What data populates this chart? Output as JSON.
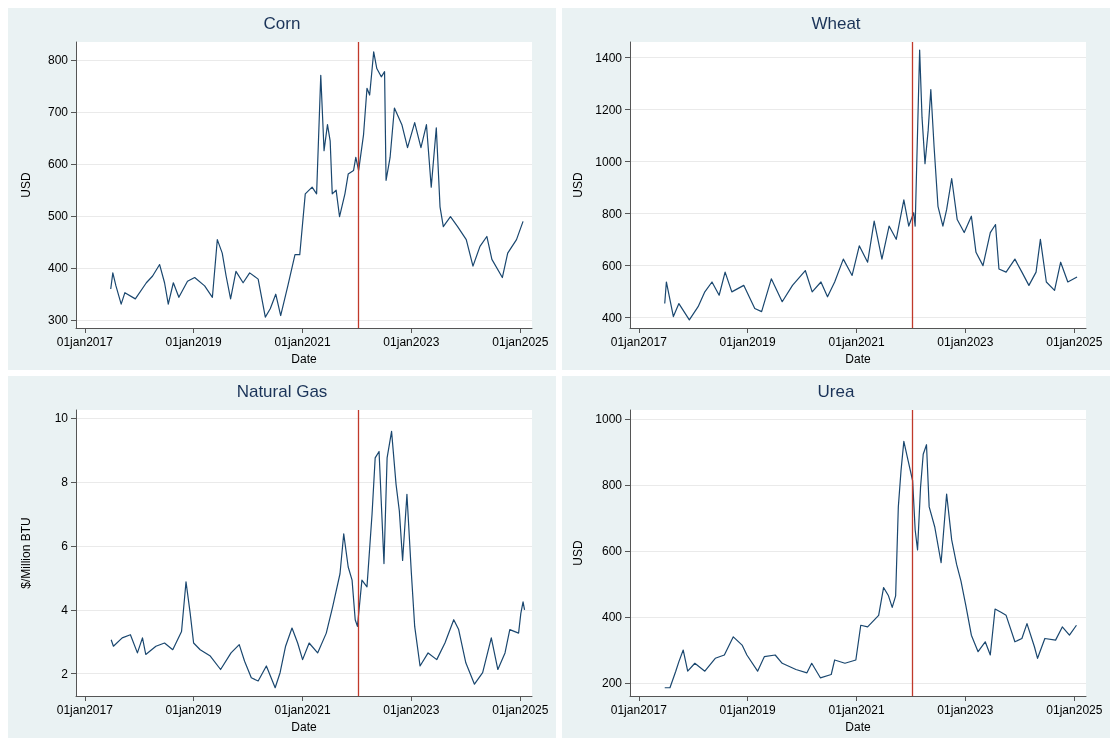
{
  "chart_data": [
    {
      "type": "line",
      "title": "Corn",
      "xlabel": "Date",
      "ylabel": "USD",
      "grid": "y",
      "x": [
        "2017-06-24",
        "2017-07-08",
        "2017-07-29",
        "2017-09-02",
        "2017-09-27",
        "2017-12-06",
        "2018-02-18",
        "2018-04-01",
        "2018-05-18",
        "2018-06-20",
        "2018-07-15",
        "2018-08-18",
        "2018-09-24",
        "2018-11-21",
        "2019-01-08",
        "2019-03-16",
        "2019-05-07",
        "2019-06-09",
        "2019-07-12",
        "2019-08-07",
        "2019-09-06",
        "2019-10-12",
        "2019-11-29",
        "2020-01-12",
        "2020-03-09",
        "2020-04-26",
        "2020-05-29",
        "2020-07-05",
        "2020-08-07",
        "2020-09-24",
        "2020-11-11",
        "2020-12-13",
        "2021-01-19",
        "2021-03-06",
        "2021-04-05",
        "2021-05-03",
        "2021-05-25",
        "2021-06-17",
        "2021-07-05",
        "2021-07-19",
        "2021-08-14",
        "2021-09-06",
        "2021-10-12",
        "2021-11-03",
        "2021-12-09",
        "2021-12-24",
        "2022-01-12",
        "2022-02-14",
        "2022-03-09",
        "2022-03-27",
        "2022-04-23",
        "2022-05-14",
        "2022-06-13",
        "2022-07-05",
        "2022-07-15",
        "2022-08-11",
        "2022-09-09",
        "2022-10-29",
        "2022-12-06",
        "2023-01-23",
        "2023-03-06",
        "2023-04-12",
        "2023-05-14",
        "2023-06-17",
        "2023-07-12",
        "2023-08-03",
        "2023-09-20",
        "2023-11-07",
        "2024-01-04",
        "2024-02-18",
        "2024-04-05",
        "2024-05-21",
        "2024-06-24",
        "2024-09-02",
        "2024-10-08",
        "2024-12-06",
        "2025-01-19"
      ],
      "series": [
        {
          "color": "#1a476f",
          "values": [
            360,
            391,
            366,
            331,
            353,
            341,
            372,
            385,
            407,
            372,
            331,
            372,
            344,
            375,
            382,
            366,
            344,
            455,
            429,
            385,
            341,
            394,
            372,
            391,
            379,
            306,
            322,
            350,
            309,
            366,
            426,
            426,
            543,
            556,
            543,
            771,
            626,
            676,
            645,
            543,
            550,
            499,
            543,
            581,
            588,
            613,
            588,
            657,
            746,
            733,
            816,
            784,
            768,
            778,
            569,
            613,
            708,
            676,
            632,
            680,
            632,
            676,
            556,
            670,
            518,
            480,
            499,
            480,
            455,
            404,
            442,
            461,
            417,
            382,
            429,
            455,
            490
          ]
        }
      ],
      "xlim": [
        "2016-11-03",
        "2025-03-20"
      ],
      "xticks": [
        {
          "value": "2017-01-01",
          "label": "01jan2017"
        },
        {
          "value": "2019-01-01",
          "label": "01jan2019"
        },
        {
          "value": "2021-01-01",
          "label": "01jan2021"
        },
        {
          "value": "2023-01-01",
          "label": "01jan2023"
        },
        {
          "value": "2025-01-01",
          "label": "01jan2025"
        }
      ],
      "ylim": [
        285,
        835
      ],
      "yticks": [
        300,
        400,
        500,
        600,
        700,
        800
      ],
      "ref_lines": [
        {
          "axis": "x",
          "value": "2022-01-08",
          "color": "#c0392b"
        }
      ]
    },
    {
      "type": "line",
      "title": "Wheat",
      "xlabel": "Date",
      "ylabel": "USD",
      "grid": "y",
      "x": [
        "2017-06-24",
        "2017-07-05",
        "2017-08-21",
        "2017-09-27",
        "2017-12-06",
        "2018-02-03",
        "2018-03-20",
        "2018-05-07",
        "2018-06-24",
        "2018-08-03",
        "2018-09-17",
        "2018-12-06",
        "2019-02-18",
        "2019-04-05",
        "2019-06-09",
        "2019-08-21",
        "2019-10-29",
        "2020-01-23",
        "2020-03-09",
        "2020-05-07",
        "2020-06-20",
        "2020-08-07",
        "2020-10-04",
        "2020-12-02",
        "2021-01-19",
        "2021-03-16",
        "2021-04-29",
        "2021-06-20",
        "2021-08-07",
        "2021-09-24",
        "2021-11-14",
        "2021-12-17",
        "2022-01-19",
        "2022-01-29",
        "2022-02-28",
        "2022-03-16",
        "2022-04-05",
        "2022-04-26",
        "2022-05-14",
        "2022-06-05",
        "2022-07-01",
        "2022-08-03",
        "2022-08-28",
        "2022-10-01",
        "2022-11-07",
        "2022-12-24",
        "2023-02-10",
        "2023-03-13",
        "2023-04-29",
        "2023-06-17",
        "2023-07-22",
        "2023-08-14",
        "2023-10-01",
        "2023-11-29",
        "2024-01-15",
        "2024-03-02",
        "2024-04-19",
        "2024-05-18",
        "2024-06-27",
        "2024-08-21",
        "2024-10-01",
        "2024-11-18",
        "2025-01-19"
      ],
      "series": [
        {
          "color": "#1a476f",
          "values": [
            454,
            537,
            404,
            454,
            391,
            442,
            499,
            537,
            486,
            575,
            499,
            524,
            435,
            423,
            549,
            461,
            524,
            581,
            499,
            537,
            480,
            537,
            625,
            562,
            676,
            613,
            771,
            625,
            752,
            701,
            853,
            752,
            803,
            752,
            1429,
            1170,
            992,
            1119,
            1277,
            1056,
            828,
            752,
            815,
            935,
            777,
            727,
            790,
            651,
            600,
            727,
            758,
            587,
            575,
            625,
            575,
            524,
            575,
            701,
            537,
            505,
            613,
            537,
            556
          ]
        }
      ],
      "xlim": [
        "2016-11-03",
        "2025-03-20"
      ],
      "xticks": [
        {
          "value": "2017-01-01",
          "label": "01jan2017"
        },
        {
          "value": "2019-01-01",
          "label": "01jan2019"
        },
        {
          "value": "2021-01-01",
          "label": "01jan2021"
        },
        {
          "value": "2023-01-01",
          "label": "01jan2023"
        },
        {
          "value": "2025-01-01",
          "label": "01jan2025"
        }
      ],
      "ylim": [
        360,
        1460
      ],
      "yticks": [
        400,
        600,
        800,
        1000,
        1200,
        1400
      ],
      "ref_lines": [
        {
          "axis": "x",
          "value": "2022-01-08",
          "color": "#c0392b"
        }
      ]
    },
    {
      "type": "line",
      "title": "Natural Gas",
      "xlabel": "Date",
      "ylabel": "$/Million BTU",
      "grid": "y",
      "x": [
        "2017-06-27",
        "2017-07-12",
        "2017-09-09",
        "2017-11-03",
        "2017-12-20",
        "2018-01-23",
        "2018-02-14",
        "2018-04-23",
        "2018-06-20",
        "2018-08-14",
        "2018-10-12",
        "2018-11-11",
        "2018-12-09",
        "2019-01-01",
        "2019-02-14",
        "2019-04-23",
        "2019-07-01",
        "2019-09-09",
        "2019-11-03",
        "2019-12-09",
        "2020-01-23",
        "2020-03-09",
        "2020-05-03",
        "2020-07-01",
        "2020-08-03",
        "2020-09-09",
        "2020-10-22",
        "2020-11-29",
        "2021-01-01",
        "2021-02-14",
        "2021-04-12",
        "2021-06-09",
        "2021-07-22",
        "2021-09-09",
        "2021-10-04",
        "2021-11-03",
        "2021-11-29",
        "2021-12-20",
        "2022-01-04",
        "2022-02-03",
        "2022-03-09",
        "2022-04-12",
        "2022-05-03",
        "2022-05-29",
        "2022-07-01",
        "2022-07-22",
        "2022-08-21",
        "2022-09-20",
        "2022-10-12",
        "2022-11-03",
        "2022-12-02",
        "2023-01-01",
        "2023-01-23",
        "2023-02-28",
        "2023-04-23",
        "2023-06-20",
        "2023-08-14",
        "2023-10-12",
        "2023-11-14",
        "2024-01-01",
        "2024-02-28",
        "2024-04-23",
        "2024-06-20",
        "2024-08-03",
        "2024-09-20",
        "2024-10-22",
        "2024-12-20",
        "2025-01-04",
        "2025-01-19",
        "2025-01-29"
      ],
      "series": [
        {
          "color": "#1a476f",
          "values": [
            3.06,
            2.86,
            3.12,
            3.22,
            2.65,
            3.12,
            2.6,
            2.86,
            2.96,
            2.75,
            3.32,
            4.88,
            3.89,
            2.96,
            2.75,
            2.55,
            2.13,
            2.65,
            2.91,
            2.39,
            1.87,
            1.77,
            2.24,
            1.56,
            2.03,
            2.86,
            3.43,
            2.96,
            2.44,
            2.96,
            2.65,
            3.27,
            4.1,
            5.13,
            6.38,
            5.34,
            4.93,
            3.69,
            3.48,
            4.93,
            4.72,
            7.0,
            8.76,
            8.96,
            5.45,
            8.76,
            9.59,
            7.93,
            7.1,
            5.55,
            7.62,
            5.13,
            3.48,
            2.24,
            2.65,
            2.44,
            2.96,
            3.69,
            3.38,
            2.34,
            1.67,
            2.03,
            3.12,
            2.13,
            2.65,
            3.38,
            3.27,
            3.89,
            4.25,
            4.0
          ]
        }
      ],
      "xlim": [
        "2016-11-03",
        "2025-03-20"
      ],
      "xticks": [
        {
          "value": "2017-01-01",
          "label": "01jan2017"
        },
        {
          "value": "2019-01-01",
          "label": "01jan2019"
        },
        {
          "value": "2021-01-01",
          "label": "01jan2021"
        },
        {
          "value": "2023-01-01",
          "label": "01jan2023"
        },
        {
          "value": "2025-01-01",
          "label": "01jan2025"
        }
      ],
      "ylim": [
        1.3,
        10.26
      ],
      "yticks": [
        2,
        4,
        6,
        8,
        10
      ],
      "ref_lines": [
        {
          "axis": "x",
          "value": "2022-01-08",
          "color": "#c0392b"
        }
      ]
    },
    {
      "type": "line",
      "title": "Urea",
      "xlabel": "Date",
      "ylabel": "USD",
      "grid": "y",
      "x": [
        "2017-06-24",
        "2017-07-29",
        "2017-09-06",
        "2017-09-27",
        "2017-10-26",
        "2017-11-25",
        "2018-01-12",
        "2018-03-20",
        "2018-05-29",
        "2018-07-29",
        "2018-09-27",
        "2018-11-25",
        "2018-12-27",
        "2019-03-09",
        "2019-04-23",
        "2019-07-05",
        "2019-08-21",
        "2019-11-21",
        "2020-02-03",
        "2020-03-06",
        "2020-05-03",
        "2020-07-15",
        "2020-08-07",
        "2020-10-15",
        "2020-12-27",
        "2021-01-29",
        "2021-03-16",
        "2021-05-29",
        "2021-07-01",
        "2021-08-03",
        "2021-08-28",
        "2021-09-20",
        "2021-10-08",
        "2021-10-26",
        "2021-11-14",
        "2021-12-13",
        "2022-01-12",
        "2022-01-29",
        "2022-02-14",
        "2022-03-06",
        "2022-03-24",
        "2022-04-15",
        "2022-05-03",
        "2022-06-09",
        "2022-07-22",
        "2022-08-28",
        "2022-10-01",
        "2022-11-03",
        "2022-12-02",
        "2023-01-04",
        "2023-02-10",
        "2023-03-27",
        "2023-05-14",
        "2023-06-17",
        "2023-07-19",
        "2023-08-28",
        "2023-10-01",
        "2023-11-29",
        "2024-01-15",
        "2024-02-18",
        "2024-04-08",
        "2024-04-29",
        "2024-06-17",
        "2024-08-28",
        "2024-10-12",
        "2024-11-29",
        "2025-01-15"
      ],
      "series": [
        {
          "color": "#1a476f",
          "values": [
            187,
            187,
            237,
            266,
            301,
            237,
            261,
            237,
            276,
            286,
            341,
            316,
            286,
            237,
            281,
            286,
            261,
            242,
            232,
            261,
            217,
            227,
            271,
            261,
            271,
            376,
            371,
            406,
            490,
            465,
            430,
            465,
            734,
            843,
            932,
            873,
            813,
            664,
            604,
            793,
            893,
            922,
            734,
            674,
            565,
            773,
            634,
            560,
            510,
            435,
            346,
            296,
            326,
            286,
            425,
            415,
            406,
            326,
            336,
            381,
            311,
            276,
            336,
            331,
            371,
            346,
            376
          ]
        }
      ],
      "xlim": [
        "2016-11-03",
        "2025-03-20"
      ],
      "xticks": [
        {
          "value": "2017-01-01",
          "label": "01jan2017"
        },
        {
          "value": "2019-01-01",
          "label": "01jan2019"
        },
        {
          "value": "2021-01-01",
          "label": "01jan2021"
        },
        {
          "value": "2023-01-01",
          "label": "01jan2023"
        },
        {
          "value": "2025-01-01",
          "label": "01jan2025"
        }
      ],
      "ylim": [
        162,
        1027
      ],
      "yticks": [
        200,
        400,
        600,
        800,
        1000
      ],
      "ref_lines": [
        {
          "axis": "x",
          "value": "2022-01-08",
          "color": "#c0392b"
        }
      ]
    }
  ]
}
